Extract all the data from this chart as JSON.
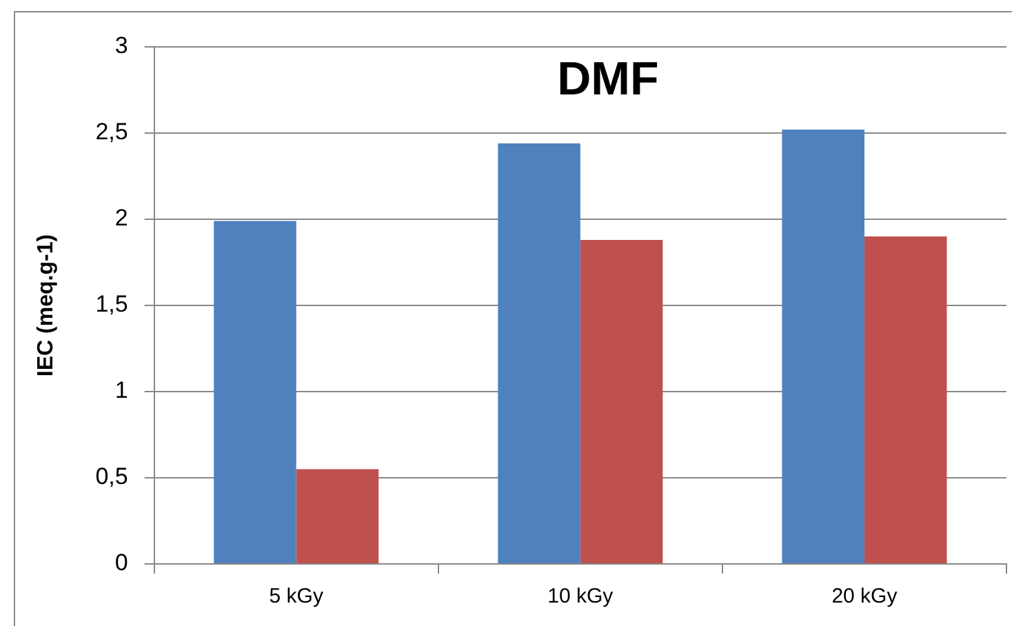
{
  "chart_data": {
    "type": "bar",
    "title": "DMF",
    "ylabel": "IEC (meq.g-1)",
    "categories": [
      "5 kGy",
      "10 kGy",
      "20 kGy"
    ],
    "series": [
      {
        "color": "#4f81bd",
        "values": [
          1.99,
          2.44,
          2.52
        ]
      },
      {
        "color": "#c0504d",
        "values": [
          0.55,
          1.88,
          1.9
        ]
      }
    ],
    "ylim": [
      0,
      3
    ],
    "yticks": [
      0,
      {
        "value": 0.5,
        "label": "0,5"
      },
      1,
      {
        "value": 1.5,
        "label": "1,5"
      },
      2,
      {
        "value": 2.5,
        "label": "2,5"
      },
      3
    ],
    "grid": "y",
    "legend": false
  }
}
